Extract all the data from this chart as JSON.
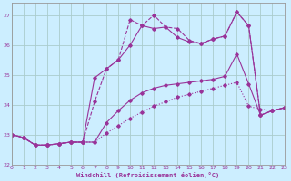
{
  "xlabel": "Windchill (Refroidissement éolien,°C)",
  "bg_color": "#cceeff",
  "grid_color": "#aacccc",
  "line_color": "#993399",
  "xlim": [
    0,
    23
  ],
  "ylim": [
    22.0,
    27.4
  ],
  "yticks": [
    22,
    23,
    24,
    25,
    26,
    27
  ],
  "xticks": [
    0,
    1,
    2,
    3,
    4,
    5,
    6,
    7,
    8,
    9,
    10,
    11,
    12,
    13,
    14,
    15,
    16,
    17,
    18,
    19,
    20,
    21,
    22,
    23
  ],
  "series": [
    [
      23.0,
      22.9,
      22.65,
      22.65,
      22.7,
      22.75,
      22.75,
      22.75,
      23.05,
      23.3,
      23.55,
      23.75,
      23.95,
      24.1,
      24.25,
      24.35,
      24.45,
      24.55,
      24.65,
      24.75,
      23.95,
      23.85,
      23.8,
      23.9
    ],
    [
      23.0,
      22.9,
      22.65,
      22.65,
      22.7,
      22.75,
      22.75,
      22.75,
      23.4,
      23.8,
      24.15,
      24.4,
      24.55,
      24.65,
      24.7,
      24.75,
      24.8,
      24.85,
      24.95,
      25.7,
      24.7,
      23.65,
      23.8,
      23.9
    ],
    [
      23.0,
      22.9,
      22.65,
      22.65,
      22.7,
      22.75,
      22.75,
      24.9,
      25.2,
      25.5,
      26.0,
      26.65,
      26.55,
      26.6,
      26.25,
      26.1,
      26.05,
      26.2,
      26.3,
      27.1,
      26.65,
      23.65,
      23.8,
      23.9
    ],
    [
      23.0,
      22.9,
      22.65,
      22.65,
      22.7,
      22.75,
      22.75,
      24.1,
      25.2,
      25.5,
      26.85,
      26.65,
      27.0,
      26.6,
      26.55,
      26.15,
      26.05,
      26.2,
      26.3,
      27.1,
      26.65,
      23.65,
      23.8,
      23.9
    ]
  ],
  "line_styles": [
    "dotted",
    "solid",
    "solid",
    "dashed"
  ],
  "marker_styles": [
    "D",
    "D",
    "D",
    "D"
  ]
}
